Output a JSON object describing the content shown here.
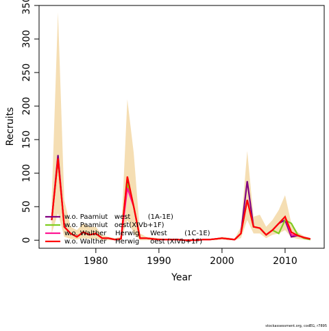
{
  "chart_data": {
    "type": "line",
    "x": [
      1973,
      1974,
      1975,
      1976,
      1977,
      1978,
      1979,
      1980,
      1981,
      1982,
      1983,
      1984,
      1985,
      1986,
      1987,
      1988,
      1989,
      1990,
      1991,
      1992,
      1993,
      1994,
      1995,
      1996,
      1997,
      1998,
      1999,
      2000,
      2001,
      2002,
      2003,
      2004,
      2005,
      2006,
      2007,
      2008,
      2009,
      2010,
      2011,
      2012,
      2013,
      2014
    ],
    "band": {
      "color": "#f5deb3",
      "upper": [
        60,
        340,
        60,
        20,
        15,
        25,
        20,
        20,
        8,
        5,
        3,
        5,
        210,
        130,
        10,
        5,
        4,
        3,
        2,
        2,
        2,
        1,
        1,
        1,
        2,
        2,
        3,
        5,
        4,
        2,
        20,
        133,
        35,
        38,
        20,
        30,
        45,
        67,
        25,
        12,
        6,
        3
      ],
      "lower": [
        10,
        40,
        5,
        2,
        1,
        3,
        2,
        2,
        0,
        0,
        0,
        0,
        30,
        10,
        0,
        0,
        0,
        0,
        0,
        0,
        0,
        0,
        0,
        0,
        0,
        0,
        0,
        1,
        0,
        0,
        3,
        30,
        10,
        10,
        3,
        8,
        10,
        15,
        4,
        2,
        1,
        0
      ]
    },
    "series": [
      {
        "name": "w.o. Paamiut   west        (1A-1E)",
        "color": "#800080",
        "values": [
          30,
          127,
          20,
          10,
          5,
          12,
          8,
          10,
          3,
          3,
          1,
          2,
          92,
          50,
          3,
          3,
          2,
          1,
          1,
          1,
          1,
          0,
          0,
          0,
          1,
          1,
          2,
          3,
          2,
          1,
          10,
          88,
          20,
          18,
          8,
          15,
          25,
          30,
          5,
          7,
          4,
          2
        ]
      },
      {
        "name": "w.o. Paamiut   oest(XIVb+1F)",
        "color": "#7fcc1f",
        "values": [
          30,
          120,
          20,
          10,
          5,
          12,
          8,
          10,
          3,
          3,
          1,
          2,
          85,
          50,
          3,
          3,
          2,
          1,
          1,
          1,
          1,
          0,
          0,
          0,
          1,
          1,
          2,
          3,
          2,
          1,
          10,
          60,
          20,
          18,
          8,
          15,
          10,
          30,
          25,
          8,
          3,
          1
        ]
      },
      {
        "name": "w.o. Walther    Herwig     West        (1C-1E)",
        "color": "#ff1493",
        "values": [
          30,
          122,
          20,
          10,
          5,
          12,
          8,
          10,
          3,
          3,
          1,
          2,
          78,
          50,
          3,
          3,
          2,
          1,
          1,
          1,
          1,
          0,
          0,
          0,
          1,
          1,
          2,
          3,
          2,
          1,
          10,
          60,
          20,
          18,
          8,
          15,
          25,
          35,
          8,
          7,
          4,
          2
        ]
      },
      {
        "name": "w.o. Walther    Herwig     oest (XIVb+1F)",
        "color": "#ff0000",
        "values": [
          30,
          122,
          20,
          10,
          5,
          12,
          8,
          10,
          3,
          3,
          1,
          2,
          95,
          50,
          3,
          3,
          2,
          1,
          1,
          1,
          1,
          0,
          0,
          0,
          1,
          1,
          2,
          3,
          2,
          1,
          10,
          60,
          20,
          18,
          8,
          15,
          25,
          35,
          12,
          7,
          4,
          2
        ]
      }
    ],
    "xlabel": "Year",
    "ylabel": "Recruits",
    "xlim": [
      1971,
      2016.2
    ],
    "ylim": [
      -12,
      350
    ],
    "xticks": [
      1980,
      1990,
      2000,
      2010
    ],
    "yticks": [
      0,
      50,
      100,
      150,
      200,
      250,
      300,
      350
    ],
    "legend": "bottomleft",
    "footer": "stockassessment.org, codEG, r7895"
  }
}
